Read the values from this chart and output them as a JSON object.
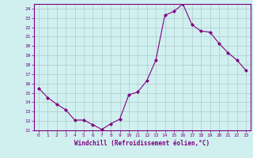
{
  "x": [
    0,
    1,
    2,
    3,
    4,
    5,
    6,
    7,
    8,
    9,
    10,
    11,
    12,
    13,
    14,
    15,
    16,
    17,
    18,
    19,
    20,
    21,
    22,
    23
  ],
  "y": [
    15.5,
    14.5,
    13.8,
    13.2,
    12.1,
    12.1,
    11.6,
    11.1,
    11.7,
    12.2,
    14.8,
    15.1,
    16.3,
    18.5,
    23.3,
    23.7,
    24.5,
    22.3,
    21.6,
    21.5,
    20.3,
    19.3,
    18.5,
    17.4
  ],
  "line_color": "#800080",
  "marker": "D",
  "marker_size": 2.0,
  "bg_color": "#d0f0f0",
  "grid_color": "#b0c8c8",
  "xlabel": "Windchill (Refroidissement éolien,°C)",
  "xlabel_color": "#800080",
  "tick_color": "#800080",
  "ylim": [
    11,
    24
  ],
  "xlim": [
    -0.5,
    23.5
  ],
  "yticks": [
    11,
    12,
    13,
    14,
    15,
    16,
    17,
    18,
    19,
    20,
    21,
    22,
    23,
    24
  ],
  "xticks": [
    0,
    1,
    2,
    3,
    4,
    5,
    6,
    7,
    8,
    9,
    10,
    11,
    12,
    13,
    14,
    15,
    16,
    17,
    18,
    19,
    20,
    21,
    22,
    23
  ],
  "spine_color": "#800080"
}
